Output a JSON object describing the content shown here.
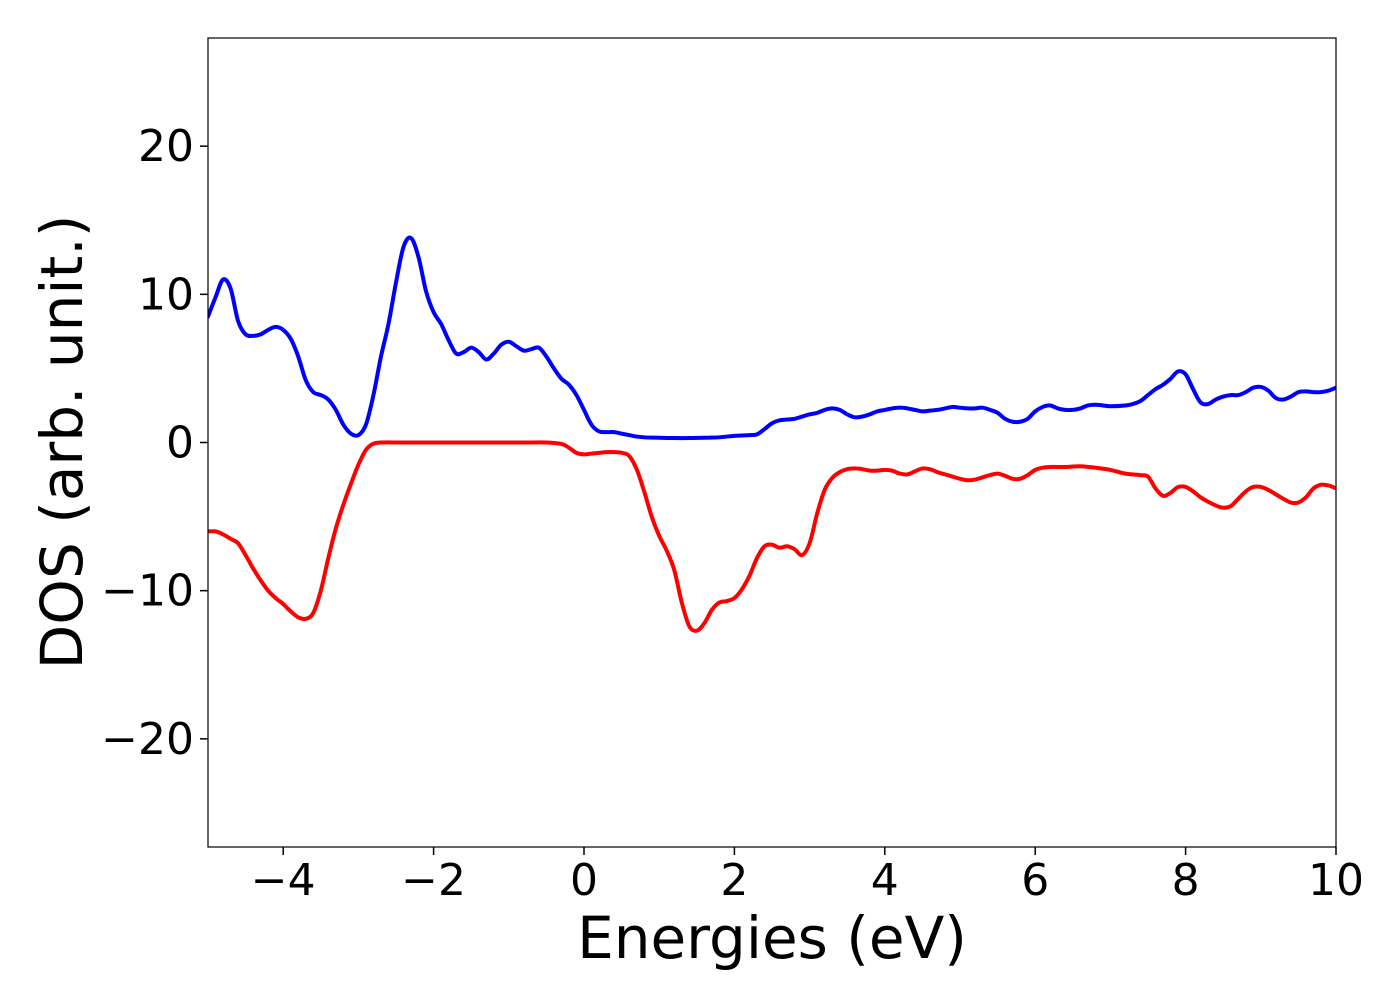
{
  "chart_data": {
    "type": "line",
    "title": "",
    "xlabel": "Energies (eV)",
    "ylabel": "DOS (arb. unit.)",
    "xlim": [
      -5,
      10
    ],
    "ylim": [
      -27.3,
      27.3
    ],
    "xticks": [
      -4,
      -2,
      0,
      2,
      4,
      6,
      8,
      10
    ],
    "xtick_labels": [
      "−4",
      "−2",
      "0",
      "2",
      "4",
      "6",
      "8",
      "10"
    ],
    "yticks": [
      -20,
      -10,
      0,
      10,
      20
    ],
    "ytick_labels": [
      "−20",
      "−10",
      "0",
      "10",
      "20"
    ],
    "grid": false,
    "legend": "none",
    "series": [
      {
        "color": "#0000ff",
        "points": [
          [
            -5.0,
            8.5
          ],
          [
            -4.9,
            9.8
          ],
          [
            -4.8,
            11.0
          ],
          [
            -4.7,
            10.4
          ],
          [
            -4.6,
            8.2
          ],
          [
            -4.5,
            7.3
          ],
          [
            -4.4,
            7.2
          ],
          [
            -4.3,
            7.3
          ],
          [
            -4.2,
            7.6
          ],
          [
            -4.1,
            7.8
          ],
          [
            -4.0,
            7.6
          ],
          [
            -3.9,
            7.0
          ],
          [
            -3.8,
            5.8
          ],
          [
            -3.7,
            4.2
          ],
          [
            -3.6,
            3.4
          ],
          [
            -3.5,
            3.2
          ],
          [
            -3.4,
            2.9
          ],
          [
            -3.3,
            2.2
          ],
          [
            -3.2,
            1.2
          ],
          [
            -3.1,
            0.6
          ],
          [
            -3.0,
            0.5
          ],
          [
            -2.9,
            1.2
          ],
          [
            -2.8,
            3.2
          ],
          [
            -2.7,
            5.8
          ],
          [
            -2.6,
            8.0
          ],
          [
            -2.5,
            10.8
          ],
          [
            -2.4,
            13.2
          ],
          [
            -2.3,
            13.8
          ],
          [
            -2.2,
            12.5
          ],
          [
            -2.1,
            10.2
          ],
          [
            -2.0,
            8.8
          ],
          [
            -1.9,
            8.0
          ],
          [
            -1.8,
            6.9
          ],
          [
            -1.7,
            6.0
          ],
          [
            -1.6,
            6.1
          ],
          [
            -1.5,
            6.4
          ],
          [
            -1.4,
            6.1
          ],
          [
            -1.3,
            5.6
          ],
          [
            -1.2,
            6.0
          ],
          [
            -1.1,
            6.6
          ],
          [
            -1.0,
            6.8
          ],
          [
            -0.9,
            6.5
          ],
          [
            -0.8,
            6.2
          ],
          [
            -0.7,
            6.3
          ],
          [
            -0.6,
            6.4
          ],
          [
            -0.5,
            5.8
          ],
          [
            -0.4,
            5.0
          ],
          [
            -0.3,
            4.3
          ],
          [
            -0.2,
            3.9
          ],
          [
            -0.1,
            3.2
          ],
          [
            0.0,
            2.2
          ],
          [
            0.1,
            1.2
          ],
          [
            0.2,
            0.75
          ],
          [
            0.3,
            0.7
          ],
          [
            0.4,
            0.7
          ],
          [
            0.5,
            0.6
          ],
          [
            0.6,
            0.5
          ],
          [
            0.7,
            0.4
          ],
          [
            0.8,
            0.35
          ],
          [
            0.9,
            0.33
          ],
          [
            1.0,
            0.32
          ],
          [
            1.2,
            0.3
          ],
          [
            1.4,
            0.3
          ],
          [
            1.6,
            0.32
          ],
          [
            1.8,
            0.35
          ],
          [
            1.9,
            0.4
          ],
          [
            2.0,
            0.45
          ],
          [
            2.2,
            0.5
          ],
          [
            2.3,
            0.55
          ],
          [
            2.4,
            0.9
          ],
          [
            2.5,
            1.3
          ],
          [
            2.6,
            1.5
          ],
          [
            2.7,
            1.55
          ],
          [
            2.8,
            1.6
          ],
          [
            2.9,
            1.75
          ],
          [
            3.0,
            1.9
          ],
          [
            3.1,
            2.0
          ],
          [
            3.2,
            2.2
          ],
          [
            3.3,
            2.3
          ],
          [
            3.4,
            2.2
          ],
          [
            3.5,
            1.9
          ],
          [
            3.6,
            1.7
          ],
          [
            3.7,
            1.75
          ],
          [
            3.8,
            1.9
          ],
          [
            3.9,
            2.1
          ],
          [
            4.0,
            2.2
          ],
          [
            4.1,
            2.3
          ],
          [
            4.2,
            2.35
          ],
          [
            4.3,
            2.3
          ],
          [
            4.4,
            2.2
          ],
          [
            4.5,
            2.1
          ],
          [
            4.6,
            2.15
          ],
          [
            4.7,
            2.2
          ],
          [
            4.8,
            2.3
          ],
          [
            4.9,
            2.4
          ],
          [
            5.0,
            2.35
          ],
          [
            5.1,
            2.3
          ],
          [
            5.2,
            2.3
          ],
          [
            5.3,
            2.35
          ],
          [
            5.4,
            2.2
          ],
          [
            5.5,
            2.0
          ],
          [
            5.6,
            1.6
          ],
          [
            5.7,
            1.4
          ],
          [
            5.8,
            1.4
          ],
          [
            5.9,
            1.6
          ],
          [
            6.0,
            2.1
          ],
          [
            6.1,
            2.4
          ],
          [
            6.2,
            2.5
          ],
          [
            6.3,
            2.3
          ],
          [
            6.4,
            2.2
          ],
          [
            6.5,
            2.2
          ],
          [
            6.6,
            2.3
          ],
          [
            6.7,
            2.5
          ],
          [
            6.8,
            2.55
          ],
          [
            6.9,
            2.5
          ],
          [
            7.0,
            2.45
          ],
          [
            7.2,
            2.5
          ],
          [
            7.3,
            2.6
          ],
          [
            7.4,
            2.8
          ],
          [
            7.5,
            3.2
          ],
          [
            7.6,
            3.6
          ],
          [
            7.7,
            3.9
          ],
          [
            7.8,
            4.3
          ],
          [
            7.9,
            4.8
          ],
          [
            8.0,
            4.6
          ],
          [
            8.1,
            3.6
          ],
          [
            8.2,
            2.7
          ],
          [
            8.3,
            2.6
          ],
          [
            8.4,
            2.9
          ],
          [
            8.5,
            3.1
          ],
          [
            8.6,
            3.2
          ],
          [
            8.7,
            3.2
          ],
          [
            8.8,
            3.4
          ],
          [
            8.9,
            3.7
          ],
          [
            9.0,
            3.75
          ],
          [
            9.1,
            3.5
          ],
          [
            9.2,
            3.0
          ],
          [
            9.3,
            2.9
          ],
          [
            9.4,
            3.1
          ],
          [
            9.5,
            3.4
          ],
          [
            9.6,
            3.45
          ],
          [
            9.7,
            3.4
          ],
          [
            9.8,
            3.4
          ],
          [
            9.9,
            3.5
          ],
          [
            10.0,
            3.7
          ]
        ]
      },
      {
        "color": "#ff0000",
        "points": [
          [
            -5.0,
            -6.0
          ],
          [
            -4.9,
            -6.0
          ],
          [
            -4.8,
            -6.2
          ],
          [
            -4.7,
            -6.5
          ],
          [
            -4.6,
            -6.8
          ],
          [
            -4.5,
            -7.6
          ],
          [
            -4.4,
            -8.5
          ],
          [
            -4.3,
            -9.3
          ],
          [
            -4.2,
            -10.0
          ],
          [
            -4.1,
            -10.5
          ],
          [
            -4.0,
            -10.9
          ],
          [
            -3.9,
            -11.4
          ],
          [
            -3.8,
            -11.8
          ],
          [
            -3.7,
            -11.9
          ],
          [
            -3.6,
            -11.5
          ],
          [
            -3.5,
            -10.0
          ],
          [
            -3.4,
            -7.8
          ],
          [
            -3.3,
            -5.8
          ],
          [
            -3.2,
            -4.2
          ],
          [
            -3.1,
            -2.8
          ],
          [
            -3.0,
            -1.5
          ],
          [
            -2.9,
            -0.5
          ],
          [
            -2.8,
            -0.08
          ],
          [
            -2.7,
            0.0
          ],
          [
            -2.4,
            0.0
          ],
          [
            -2.0,
            0.0
          ],
          [
            -1.6,
            0.0
          ],
          [
            -1.2,
            0.0
          ],
          [
            -0.8,
            0.0
          ],
          [
            -0.5,
            0.0
          ],
          [
            -0.3,
            -0.1
          ],
          [
            -0.2,
            -0.35
          ],
          [
            -0.1,
            -0.7
          ],
          [
            0.0,
            -0.8
          ],
          [
            0.1,
            -0.75
          ],
          [
            0.2,
            -0.7
          ],
          [
            0.3,
            -0.65
          ],
          [
            0.4,
            -0.65
          ],
          [
            0.5,
            -0.7
          ],
          [
            0.6,
            -0.9
          ],
          [
            0.7,
            -1.8
          ],
          [
            0.8,
            -3.3
          ],
          [
            0.9,
            -5.0
          ],
          [
            1.0,
            -6.3
          ],
          [
            1.1,
            -7.3
          ],
          [
            1.2,
            -8.6
          ],
          [
            1.3,
            -10.8
          ],
          [
            1.4,
            -12.4
          ],
          [
            1.5,
            -12.7
          ],
          [
            1.6,
            -12.2
          ],
          [
            1.7,
            -11.3
          ],
          [
            1.8,
            -10.8
          ],
          [
            1.9,
            -10.7
          ],
          [
            2.0,
            -10.5
          ],
          [
            2.1,
            -9.9
          ],
          [
            2.2,
            -9.0
          ],
          [
            2.3,
            -7.8
          ],
          [
            2.4,
            -7.0
          ],
          [
            2.5,
            -6.9
          ],
          [
            2.6,
            -7.1
          ],
          [
            2.7,
            -7.0
          ],
          [
            2.8,
            -7.2
          ],
          [
            2.9,
            -7.6
          ],
          [
            3.0,
            -6.8
          ],
          [
            3.1,
            -4.8
          ],
          [
            3.2,
            -3.2
          ],
          [
            3.3,
            -2.4
          ],
          [
            3.4,
            -2.0
          ],
          [
            3.5,
            -1.8
          ],
          [
            3.6,
            -1.75
          ],
          [
            3.7,
            -1.8
          ],
          [
            3.8,
            -1.9
          ],
          [
            3.9,
            -1.9
          ],
          [
            4.0,
            -1.85
          ],
          [
            4.1,
            -1.9
          ],
          [
            4.2,
            -2.1
          ],
          [
            4.3,
            -2.15
          ],
          [
            4.4,
            -1.95
          ],
          [
            4.5,
            -1.75
          ],
          [
            4.6,
            -1.8
          ],
          [
            4.7,
            -2.0
          ],
          [
            4.8,
            -2.15
          ],
          [
            4.9,
            -2.3
          ],
          [
            5.0,
            -2.45
          ],
          [
            5.1,
            -2.55
          ],
          [
            5.2,
            -2.5
          ],
          [
            5.3,
            -2.35
          ],
          [
            5.4,
            -2.2
          ],
          [
            5.5,
            -2.1
          ],
          [
            5.6,
            -2.25
          ],
          [
            5.7,
            -2.45
          ],
          [
            5.8,
            -2.45
          ],
          [
            5.9,
            -2.2
          ],
          [
            6.0,
            -1.85
          ],
          [
            6.1,
            -1.7
          ],
          [
            6.2,
            -1.65
          ],
          [
            6.4,
            -1.65
          ],
          [
            6.6,
            -1.6
          ],
          [
            6.8,
            -1.7
          ],
          [
            7.0,
            -1.85
          ],
          [
            7.2,
            -2.1
          ],
          [
            7.4,
            -2.2
          ],
          [
            7.5,
            -2.3
          ],
          [
            7.6,
            -3.1
          ],
          [
            7.7,
            -3.6
          ],
          [
            7.8,
            -3.4
          ],
          [
            7.9,
            -3.0
          ],
          [
            8.0,
            -3.0
          ],
          [
            8.1,
            -3.3
          ],
          [
            8.2,
            -3.7
          ],
          [
            8.3,
            -4.0
          ],
          [
            8.4,
            -4.25
          ],
          [
            8.5,
            -4.4
          ],
          [
            8.6,
            -4.3
          ],
          [
            8.7,
            -3.8
          ],
          [
            8.8,
            -3.3
          ],
          [
            8.9,
            -3.0
          ],
          [
            9.0,
            -3.0
          ],
          [
            9.1,
            -3.2
          ],
          [
            9.2,
            -3.5
          ],
          [
            9.3,
            -3.8
          ],
          [
            9.4,
            -4.05
          ],
          [
            9.5,
            -4.05
          ],
          [
            9.6,
            -3.7
          ],
          [
            9.7,
            -3.1
          ],
          [
            9.8,
            -2.85
          ],
          [
            9.9,
            -2.9
          ],
          [
            10.0,
            -3.1
          ]
        ]
      }
    ]
  }
}
